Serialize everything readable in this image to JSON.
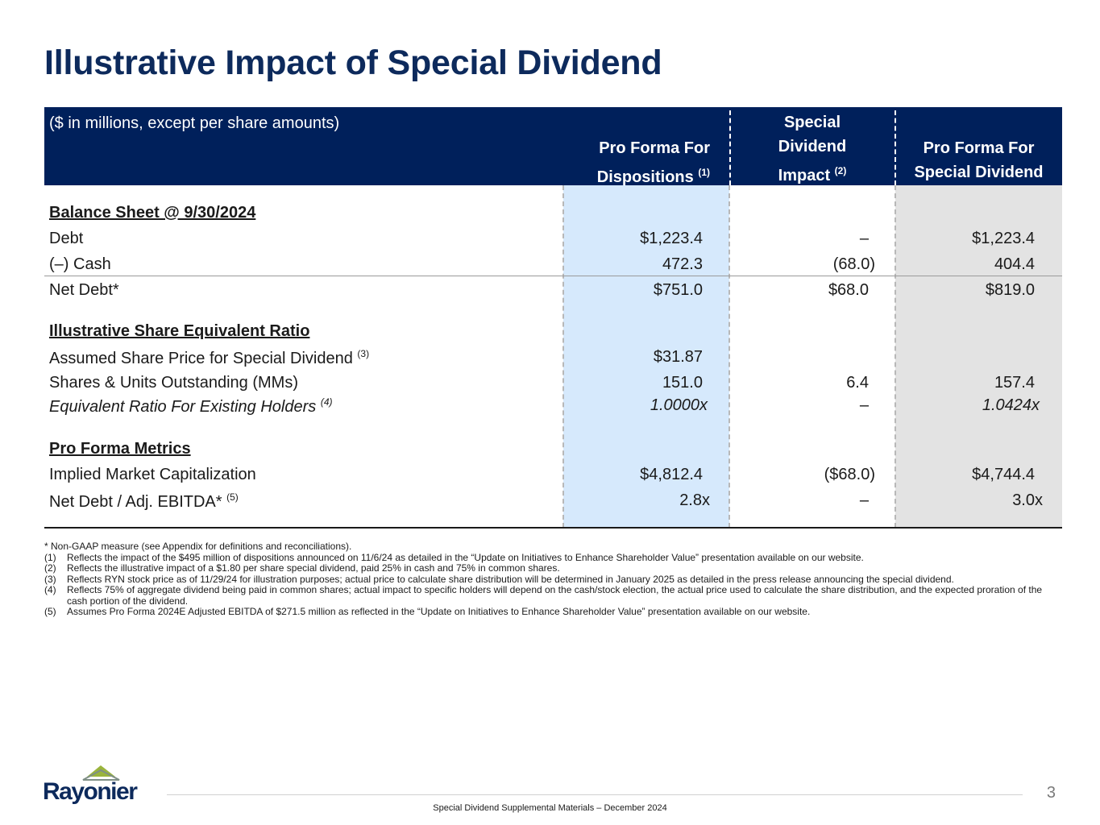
{
  "title": "Illustrative Impact of Special Dividend",
  "table": {
    "units_note": "($ in millions, except per share amounts)",
    "columns": [
      {
        "line1": "",
        "line2": "Pro Forma For",
        "line3": "Dispositions",
        "fn": "(1)"
      },
      {
        "line1": "Special",
        "line2": "Dividend",
        "line3": "Impact",
        "fn": "(2)"
      },
      {
        "line1": "",
        "line2": "Pro Forma For",
        "line3": "Special Dividend",
        "fn": ""
      }
    ],
    "sections": {
      "balance_sheet": {
        "heading": "Balance Sheet @ 9/30/2024",
        "debt": {
          "label": "Debt",
          "c1": "$1,223.4",
          "c2": "–",
          "c3": "$1,223.4"
        },
        "cash": {
          "label": "(–) Cash",
          "c1": "472.3",
          "c2": "(68.0)",
          "c3": "404.4"
        },
        "net_debt": {
          "label": "Net Debt*",
          "c1": "$751.0",
          "c2": "$68.0",
          "c3": "$819.0"
        }
      },
      "share_ratio": {
        "heading": "Illustrative Share Equivalent Ratio",
        "share_price": {
          "label": "Assumed Share Price for Special Dividend",
          "fn": "(3)",
          "c1": "$31.87"
        },
        "shares": {
          "label": "Shares & Units Outstanding (MMs)",
          "c1": "151.0",
          "c2": "6.4",
          "c3": "157.4"
        },
        "ratio": {
          "label": "Equivalent Ratio For Existing Holders",
          "fn": "(4)",
          "c1": "1.0000x",
          "c2": "–",
          "c3": "1.0424x"
        }
      },
      "metrics": {
        "heading": "Pro Forma Metrics",
        "market_cap": {
          "label": "Implied Market Capitalization",
          "c1": "$4,812.4",
          "c2": "($68.0)",
          "c3": "$4,744.4"
        },
        "leverage": {
          "label": "Net Debt / Adj. EBITDA*",
          "fn": "(5)",
          "c1": "2.8x",
          "c2": "–",
          "c3": "3.0x"
        }
      }
    }
  },
  "footnotes": {
    "star": "* Non-GAAP measure (see Appendix for definitions and reconciliations).",
    "items": [
      {
        "label": "(1)",
        "text": "Reflects the impact of the $495 million of dispositions announced on 11/6/24 as detailed in the “Update on Initiatives to Enhance Shareholder Value” presentation available on our website."
      },
      {
        "label": "(2)",
        "text": "Reflects the illustrative impact of a $1.80 per share special dividend, paid 25% in cash and 75% in common shares."
      },
      {
        "label": "(3)",
        "text": "Reflects RYN stock price as of 11/29/24 for illustration purposes; actual price to calculate share distribution will be determined in January 2025 as detailed in the press release announcing the special dividend."
      },
      {
        "label": "(4)",
        "text": "Reflects 75% of aggregate dividend being paid in common shares; actual impact to specific holders will depend on the cash/stock election, the actual price used to calculate the share distribution, and the expected proration of the cash portion of the dividend."
      },
      {
        "label": "(5)",
        "text": "Assumes Pro Forma 2024E Adjusted EBITDA of $271.5 million as reflected in the “Update on Initiatives to Enhance Shareholder Value” presentation available on our website."
      }
    ]
  },
  "footer": {
    "logo_text": "Rayonier",
    "caption": "Special Dividend Supplemental Materials  – December 2024",
    "page_number": "3"
  },
  "colors": {
    "title": "#0d2a5c",
    "header_bg": "#00205b",
    "col1_bg": "#d6e9fc",
    "col3_bg": "#e3e3e3",
    "logo_green": "#9ab43c"
  }
}
